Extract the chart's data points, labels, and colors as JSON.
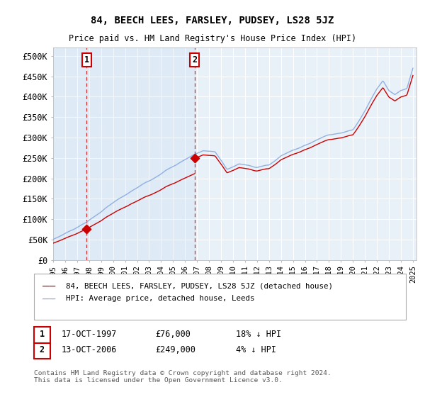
{
  "title": "84, BEECH LEES, FARSLEY, PUDSEY, LS28 5JZ",
  "subtitle": "Price paid vs. HM Land Registry's House Price Index (HPI)",
  "ylim": [
    0,
    520000
  ],
  "yticks": [
    0,
    50000,
    100000,
    150000,
    200000,
    250000,
    300000,
    350000,
    400000,
    450000,
    500000
  ],
  "ytick_labels": [
    "£0",
    "£50K",
    "£100K",
    "£150K",
    "£200K",
    "£250K",
    "£300K",
    "£350K",
    "£400K",
    "£450K",
    "£500K"
  ],
  "sale1_year": 1997.8,
  "sale1_price": 76000,
  "sale2_year": 2006.8,
  "sale2_price": 249000,
  "property_line_color": "#cc0000",
  "hpi_line_color": "#88aadd",
  "background_color": "#e8f0f8",
  "grid_color": "#ffffff",
  "legend_label_property": "84, BEECH LEES, FARSLEY, PUDSEY, LS28 5JZ (detached house)",
  "legend_label_hpi": "HPI: Average price, detached house, Leeds",
  "note1_date": "17-OCT-1997",
  "note1_price": "£76,000",
  "note1_hpi": "18% ↓ HPI",
  "note2_date": "13-OCT-2006",
  "note2_price": "£249,000",
  "note2_hpi": "4% ↓ HPI",
  "footnote": "Contains HM Land Registry data © Crown copyright and database right 2024.\nThis data is licensed under the Open Government Licence v3.0."
}
